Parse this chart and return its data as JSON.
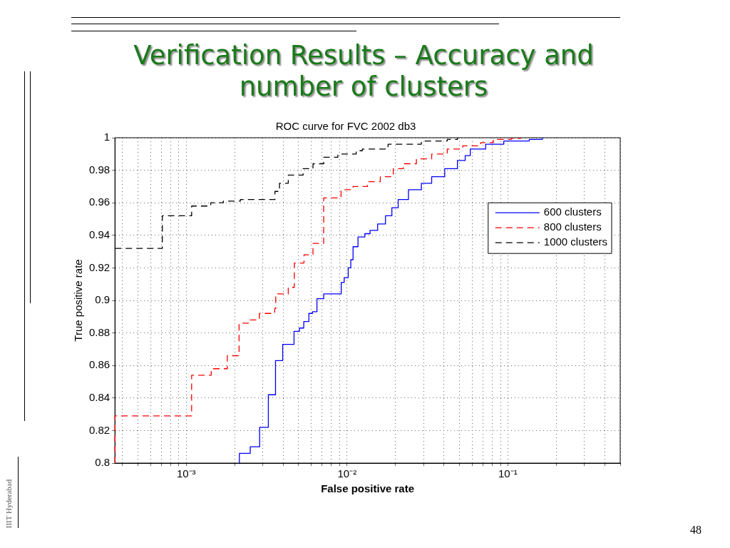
{
  "chart_data": {
    "type": "step",
    "title": "Verification Results – Accuracy and number of clusters",
    "subtitle": "ROC curve for FVC 2002 db3",
    "xlabel": "False positive rate",
    "ylabel": "True positive rate",
    "log": "x",
    "grid": true,
    "legend": "right",
    "marker": "none",
    "xlim": [
      0.00036,
      0.5
    ],
    "ylim": [
      0.8,
      1
    ],
    "xticks": [
      {
        "value": 0.0004,
        "label": null
      },
      {
        "value": 0.0005,
        "label": null
      },
      {
        "value": 0.0006,
        "label": null
      },
      {
        "value": 0.0007,
        "label": null
      },
      {
        "value": 0.0008,
        "label": null
      },
      {
        "value": 0.0009,
        "label": null
      },
      {
        "value": 0.001,
        "label": "10⁻³"
      },
      {
        "value": 0.002,
        "label": null
      },
      {
        "value": 0.003,
        "label": null
      },
      {
        "value": 0.004,
        "label": null
      },
      {
        "value": 0.005,
        "label": null
      },
      {
        "value": 0.006,
        "label": null
      },
      {
        "value": 0.007,
        "label": null
      },
      {
        "value": 0.008,
        "label": null
      },
      {
        "value": 0.009,
        "label": null
      },
      {
        "value": 0.01,
        "label": "10⁻²"
      },
      {
        "value": 0.02,
        "label": null
      },
      {
        "value": 0.03,
        "label": null
      },
      {
        "value": 0.04,
        "label": null
      },
      {
        "value": 0.05,
        "label": null
      },
      {
        "value": 0.06,
        "label": null
      },
      {
        "value": 0.07,
        "label": null
      },
      {
        "value": 0.08,
        "label": null
      },
      {
        "value": 0.09,
        "label": null
      },
      {
        "value": 0.1,
        "label": "10⁻¹"
      },
      {
        "value": 0.2,
        "label": null
      },
      {
        "value": 0.3,
        "label": null
      },
      {
        "value": 0.4,
        "label": null
      },
      {
        "value": 0.5,
        "label": null
      }
    ],
    "yticks": [
      0.8,
      0.82,
      0.84,
      0.86,
      0.88,
      0.9,
      0.92,
      0.94,
      0.96,
      0.98,
      1
    ],
    "series": [
      {
        "name": "600 clusters",
        "color": "#0000ff",
        "line_style": "solid",
        "x": [
          0.00214,
          0.00214,
          0.0025,
          0.00286,
          0.00324,
          0.00359,
          0.00398,
          0.00468,
          0.00506,
          0.00538,
          0.00579,
          0.0061,
          0.0065,
          0.00716,
          0.0092,
          0.0096,
          0.01017,
          0.01055,
          0.0109,
          0.0117,
          0.0129,
          0.0139,
          0.0155,
          0.01734,
          0.019,
          0.0208,
          0.0241,
          0.029,
          0.0336,
          0.0405,
          0.0486,
          0.0543,
          0.0584,
          0.0728,
          0.0944,
          0.136,
          0.164
        ],
        "values": [
          0.8,
          0.806,
          0.81,
          0.822,
          0.842,
          0.863,
          0.873,
          0.881,
          0.883,
          0.887,
          0.892,
          0.893,
          0.901,
          0.904,
          0.911,
          0.914,
          0.92,
          0.925,
          0.933,
          0.939,
          0.941,
          0.943,
          0.947,
          0.952,
          0.957,
          0.962,
          0.968,
          0.972,
          0.976,
          0.981,
          0.986,
          0.989,
          0.993,
          0.996,
          0.998,
          0.999,
          1
        ]
      },
      {
        "name": "800 clusters",
        "color": "#ff0000",
        "line_style": "dashed",
        "x": [
          0.00036,
          0.00036,
          0.00108,
          0.00143,
          0.0018,
          0.00213,
          0.0025,
          0.00285,
          0.00355,
          0.0036,
          0.00431,
          0.0047,
          0.0054,
          0.00614,
          0.00716,
          0.00918,
          0.0109,
          0.0134,
          0.0161,
          0.0194,
          0.0224,
          0.027,
          0.0336,
          0.042,
          0.0524,
          0.0678,
          0.0813,
          0.105,
          0.12
        ],
        "values": [
          0.8,
          0.829,
          0.854,
          0.858,
          0.866,
          0.886,
          0.888,
          0.892,
          0.895,
          0.904,
          0.908,
          0.923,
          0.928,
          0.935,
          0.963,
          0.968,
          0.97,
          0.973,
          0.976,
          0.981,
          0.984,
          0.987,
          0.99,
          0.993,
          0.995,
          0.997,
          0.999,
          0.9995,
          1
        ]
      },
      {
        "name": "1000 clusters",
        "color": "#000000",
        "line_style": "dashed",
        "x": [
          0.00036,
          0.00071,
          0.00108,
          0.00142,
          0.0017,
          0.00217,
          0.00356,
          0.0038,
          0.00431,
          0.00533,
          0.00614,
          0.00716,
          0.00877,
          0.0114,
          0.01245,
          0.018,
          0.029,
          0.042,
          0.0486
        ],
        "values": [
          0.932,
          0.952,
          0.958,
          0.96,
          0.961,
          0.962,
          0.967,
          0.972,
          0.977,
          0.981,
          0.984,
          0.988,
          0.99,
          0.992,
          0.993,
          0.996,
          0.998,
          0.999,
          1
        ]
      }
    ],
    "annotations": [
      "IIIT Hyderabad",
      "48"
    ]
  }
}
